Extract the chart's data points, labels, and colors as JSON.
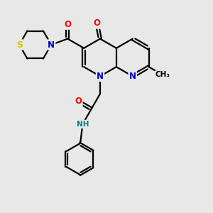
{
  "bg_color": "#e8e8e8",
  "atom_colors": {
    "N": "#0000cc",
    "O": "#ff0000",
    "S": "#cccc00",
    "NH": "#008080"
  },
  "bond_color": "#000000",
  "bond_lw": 1.6,
  "figsize": [
    3.0,
    3.0
  ],
  "dpi": 100
}
